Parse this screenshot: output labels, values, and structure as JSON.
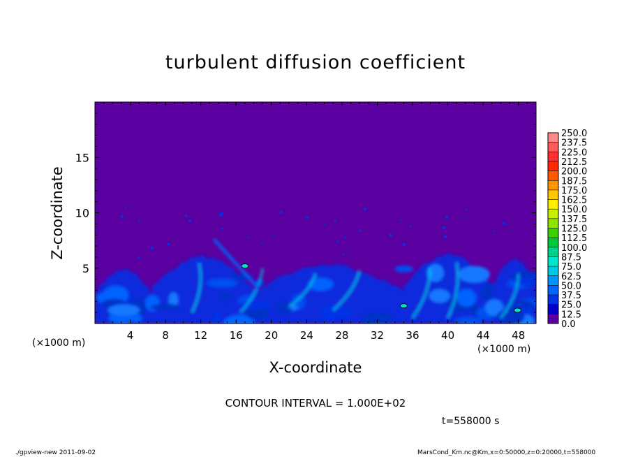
{
  "chart_data": {
    "type": "heatmap",
    "title": "turbulent diffusion coefficient",
    "xlabel": "X-coordinate",
    "ylabel": "Z-coordinate",
    "x_unit": "(×1000 m)",
    "xlim": [
      0,
      50
    ],
    "ylim": [
      0,
      20
    ],
    "x_ticks": [
      4,
      8,
      12,
      16,
      20,
      24,
      28,
      32,
      36,
      40,
      44,
      48
    ],
    "y_ticks": [
      5,
      10,
      15
    ],
    "colorbar": {
      "levels": [
        "250.0",
        "237.5",
        "225.0",
        "212.5",
        "200.0",
        "187.5",
        "175.0",
        "162.5",
        "150.0",
        "137.5",
        "125.0",
        "112.5",
        "100.0",
        "87.5",
        "75.0",
        "62.5",
        "50.0",
        "37.5",
        "25.0",
        "12.5",
        "0.0"
      ],
      "colors": [
        "#ff8a8a",
        "#ff5a5a",
        "#ff3030",
        "#ff2a00",
        "#ff5a00",
        "#ff9600",
        "#ffc800",
        "#fff000",
        "#c8f000",
        "#8ce600",
        "#3cd200",
        "#00c83c",
        "#00d28c",
        "#00e6c8",
        "#00c8e6",
        "#0096ff",
        "#0064ff",
        "#0032e6",
        "#0000c8",
        "#5a00a0"
      ],
      "background": "#5a00a0"
    },
    "regions": [
      {
        "kind": "turbulent-cell",
        "x": [
          0,
          6.5
        ],
        "z_top": 4.9
      },
      {
        "kind": "turbulent-cell",
        "x": [
          6.5,
          18
        ],
        "z_top": 6.0
      },
      {
        "kind": "turbulent-cell",
        "x": [
          18,
          35
        ],
        "z_top": 5.3
      },
      {
        "kind": "turbulent-cell",
        "x": [
          35,
          45
        ],
        "z_top": 6.2
      },
      {
        "kind": "turbulent-cell",
        "x": [
          45,
          50
        ],
        "z_top": 5.8
      }
    ]
  },
  "annotations": {
    "contour_interval": "CONTOUR INTERVAL = 1.000E+02",
    "time": "t=558000 s"
  },
  "footer": {
    "left": "./gpview-new   2011-09-02",
    "right": "MarsCond_Km.nc@Km,x=0:50000,z=0:20000,t=558000"
  }
}
